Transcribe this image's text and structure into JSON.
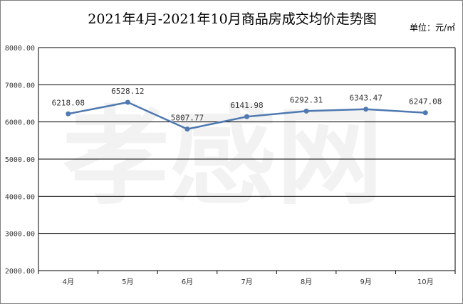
{
  "chart_data": {
    "type": "line",
    "title": "2021年4月-2021年10月商品房成交均价走势图",
    "unit_label": "单位：元/㎡",
    "watermark": "孝感网",
    "categories": [
      "4月",
      "5月",
      "6月",
      "7月",
      "8月",
      "9月",
      "10月"
    ],
    "series": [
      {
        "values": [
          6218.08,
          6528.12,
          5807.77,
          6141.98,
          6292.31,
          6343.47,
          6247.08
        ],
        "labels": [
          "6218.08",
          "6528.12",
          "5807.77",
          "6141.98",
          "6292.31",
          "6343.47",
          "6247.08"
        ],
        "color": "#4f79b0"
      }
    ],
    "ylim": [
      2000,
      8000
    ],
    "yticks": [
      2000,
      3000,
      4000,
      5000,
      6000,
      7000,
      8000
    ],
    "ytick_labels": [
      "2000.00",
      "3000.00",
      "4000.00",
      "5000.00",
      "6000.00",
      "7000.00",
      "8000.00"
    ],
    "grid": true,
    "legend": "none"
  }
}
